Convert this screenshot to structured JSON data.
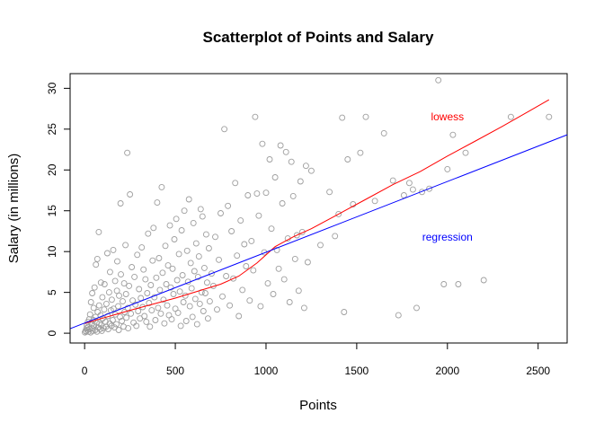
{
  "chart_data": {
    "type": "scatter",
    "title": "Scatterplot of Points and Salary",
    "xlabel": "Points",
    "ylabel": "Salary (in millions)",
    "xlim": [
      -80,
      2660
    ],
    "ylim": [
      -1.2,
      31.8
    ],
    "x_ticks": [
      0,
      500,
      1000,
      1500,
      2000,
      2500
    ],
    "y_ticks": [
      0,
      5,
      10,
      15,
      20,
      25,
      30
    ],
    "grid": false,
    "colors": {
      "points": "#9e9e9e",
      "lowess": "#ff0000",
      "regression": "#0000ff",
      "axis": "#000000"
    },
    "annotations": [
      {
        "text": "lowess",
        "x": 2000,
        "y": 26.5,
        "color": "#ff0000"
      },
      {
        "text": "regression",
        "x": 2000,
        "y": 11.8,
        "color": "#0000ff"
      }
    ],
    "regression": {
      "intercept": 1.25,
      "slope": 0.008667
    },
    "lowess": [
      [
        0,
        1.2
      ],
      [
        250,
        2.8
      ],
      [
        500,
        4.3
      ],
      [
        750,
        6.0
      ],
      [
        850,
        7.0
      ],
      [
        950,
        8.6
      ],
      [
        1050,
        10.6
      ],
      [
        1150,
        11.8
      ],
      [
        1250,
        12.8
      ],
      [
        1400,
        14.6
      ],
      [
        1550,
        16.4
      ],
      [
        1700,
        18.2
      ],
      [
        1850,
        19.8
      ],
      [
        2000,
        21.7
      ],
      [
        2150,
        23.5
      ],
      [
        2300,
        25.3
      ],
      [
        2450,
        27.2
      ],
      [
        2560,
        28.6
      ]
    ],
    "points": [
      [
        2,
        0.1
      ],
      [
        5,
        0.3
      ],
      [
        8,
        0.2
      ],
      [
        10,
        0.6
      ],
      [
        12,
        1.0
      ],
      [
        15,
        0.4
      ],
      [
        18,
        1.4
      ],
      [
        20,
        0.8
      ],
      [
        22,
        0.2
      ],
      [
        25,
        1.7
      ],
      [
        28,
        0.5
      ],
      [
        30,
        2.3
      ],
      [
        33,
        0.1
      ],
      [
        35,
        3.8
      ],
      [
        38,
        1.1
      ],
      [
        40,
        0.6
      ],
      [
        42,
        4.9
      ],
      [
        45,
        0.3
      ],
      [
        48,
        1.6
      ],
      [
        50,
        3.1
      ],
      [
        52,
        0.9
      ],
      [
        55,
        5.6
      ],
      [
        58,
        0.4
      ],
      [
        60,
        2.0
      ],
      [
        62,
        8.4
      ],
      [
        65,
        1.3
      ],
      [
        68,
        0.2
      ],
      [
        70,
        9.1
      ],
      [
        72,
        2.6
      ],
      [
        75,
        0.7
      ],
      [
        78,
        12.4
      ],
      [
        80,
        3.4
      ],
      [
        82,
        1.2
      ],
      [
        85,
        0.5
      ],
      [
        88,
        2.2
      ],
      [
        90,
        6.2
      ],
      [
        92,
        1.0
      ],
      [
        95,
        0.3
      ],
      [
        98,
        4.4
      ],
      [
        100,
        1.8
      ],
      [
        105,
        0.6
      ],
      [
        108,
        2.9
      ],
      [
        110,
        6.0
      ],
      [
        115,
        1.4
      ],
      [
        118,
        0.8
      ],
      [
        120,
        3.6
      ],
      [
        125,
        9.8
      ],
      [
        128,
        2.1
      ],
      [
        130,
        0.5
      ],
      [
        135,
        5.0
      ],
      [
        138,
        1.2
      ],
      [
        140,
        7.5
      ],
      [
        145,
        2.8
      ],
      [
        148,
        0.9
      ],
      [
        150,
        4.1
      ],
      [
        155,
        1.6
      ],
      [
        158,
        10.2
      ],
      [
        160,
        3.0
      ],
      [
        165,
        0.7
      ],
      [
        168,
        6.4
      ],
      [
        170,
        2.3
      ],
      [
        175,
        1.1
      ],
      [
        178,
        5.2
      ],
      [
        180,
        8.8
      ],
      [
        185,
        3.3
      ],
      [
        188,
        0.4
      ],
      [
        190,
        4.6
      ],
      [
        195,
        2.0
      ],
      [
        198,
        15.9
      ],
      [
        200,
        7.2
      ],
      [
        205,
        1.5
      ],
      [
        210,
        3.9
      ],
      [
        215,
        0.8
      ],
      [
        218,
        6.1
      ],
      [
        220,
        2.6
      ],
      [
        225,
        10.8
      ],
      [
        228,
        4.8
      ],
      [
        230,
        1.9
      ],
      [
        235,
        22.1
      ],
      [
        238,
        3.1
      ],
      [
        240,
        0.6
      ],
      [
        245,
        5.8
      ],
      [
        250,
        17.0
      ],
      [
        255,
        2.4
      ],
      [
        260,
        8.1
      ],
      [
        265,
        4.0
      ],
      [
        270,
        1.3
      ],
      [
        275,
        6.9
      ],
      [
        280,
        3.5
      ],
      [
        285,
        0.9
      ],
      [
        290,
        9.6
      ],
      [
        295,
        2.7
      ],
      [
        300,
        5.4
      ],
      [
        305,
        1.8
      ],
      [
        310,
        4.3
      ],
      [
        315,
        10.5
      ],
      [
        320,
        3.2
      ],
      [
        325,
        7.8
      ],
      [
        330,
        2.1
      ],
      [
        335,
        6.6
      ],
      [
        340,
        1.4
      ],
      [
        345,
        4.9
      ],
      [
        350,
        12.2
      ],
      [
        355,
        3.7
      ],
      [
        360,
        0.8
      ],
      [
        365,
        5.9
      ],
      [
        370,
        2.8
      ],
      [
        375,
        8.9
      ],
      [
        380,
        12.9
      ],
      [
        385,
        4.4
      ],
      [
        390,
        1.6
      ],
      [
        395,
        6.8
      ],
      [
        400,
        16.0
      ],
      [
        405,
        3.1
      ],
      [
        410,
        9.2
      ],
      [
        415,
        5.3
      ],
      [
        420,
        2.4
      ],
      [
        425,
        17.9
      ],
      [
        430,
        7.4
      ],
      [
        435,
        4.1
      ],
      [
        440,
        1.2
      ],
      [
        445,
        10.7
      ],
      [
        450,
        6.0
      ],
      [
        455,
        3.4
      ],
      [
        460,
        8.3
      ],
      [
        465,
        2.2
      ],
      [
        470,
        13.2
      ],
      [
        475,
        5.6
      ],
      [
        480,
        1.7
      ],
      [
        485,
        7.9
      ],
      [
        490,
        4.8
      ],
      [
        495,
        11.5
      ],
      [
        500,
        3.0
      ],
      [
        505,
        14.0
      ],
      [
        510,
        6.5
      ],
      [
        515,
        2.5
      ],
      [
        520,
        9.7
      ],
      [
        525,
        5.1
      ],
      [
        530,
        0.9
      ],
      [
        535,
        12.6
      ],
      [
        540,
        7.1
      ],
      [
        545,
        3.8
      ],
      [
        550,
        15.0
      ],
      [
        555,
        4.6
      ],
      [
        560,
        1.5
      ],
      [
        565,
        10.1
      ],
      [
        570,
        6.3
      ],
      [
        575,
        16.4
      ],
      [
        580,
        3.3
      ],
      [
        585,
        8.6
      ],
      [
        590,
        5.5
      ],
      [
        595,
        2.0
      ],
      [
        600,
        13.5
      ],
      [
        605,
        7.6
      ],
      [
        610,
        4.2
      ],
      [
        615,
        11.0
      ],
      [
        620,
        1.1
      ],
      [
        625,
        6.9
      ],
      [
        630,
        9.4
      ],
      [
        635,
        3.6
      ],
      [
        640,
        15.2
      ],
      [
        645,
        5.0
      ],
      [
        650,
        14.3
      ],
      [
        655,
        2.7
      ],
      [
        660,
        8.0
      ],
      [
        665,
        4.9
      ],
      [
        670,
        12.1
      ],
      [
        675,
        6.2
      ],
      [
        680,
        1.8
      ],
      [
        685,
        10.4
      ],
      [
        690,
        3.9
      ],
      [
        700,
        7.3
      ],
      [
        710,
        5.8
      ],
      [
        720,
        11.8
      ],
      [
        730,
        2.9
      ],
      [
        740,
        9.0
      ],
      [
        750,
        14.7
      ],
      [
        760,
        4.5
      ],
      [
        770,
        25.0
      ],
      [
        780,
        7.0
      ],
      [
        790,
        15.6
      ],
      [
        800,
        3.4
      ],
      [
        810,
        12.5
      ],
      [
        820,
        6.7
      ],
      [
        830,
        18.4
      ],
      [
        840,
        9.5
      ],
      [
        850,
        2.1
      ],
      [
        860,
        13.8
      ],
      [
        870,
        5.3
      ],
      [
        880,
        10.9
      ],
      [
        890,
        8.2
      ],
      [
        900,
        16.9
      ],
      [
        910,
        4.0
      ],
      [
        920,
        11.3
      ],
      [
        930,
        7.7
      ],
      [
        940,
        26.5
      ],
      [
        950,
        17.1
      ],
      [
        960,
        14.4
      ],
      [
        970,
        3.3
      ],
      [
        980,
        23.2
      ],
      [
        990,
        9.9
      ],
      [
        1000,
        17.2
      ],
      [
        1010,
        6.1
      ],
      [
        1020,
        21.3
      ],
      [
        1030,
        12.8
      ],
      [
        1040,
        4.8
      ],
      [
        1050,
        19.1
      ],
      [
        1060,
        10.2
      ],
      [
        1070,
        7.9
      ],
      [
        1080,
        23.0
      ],
      [
        1090,
        15.9
      ],
      [
        1100,
        6.6
      ],
      [
        1110,
        22.2
      ],
      [
        1120,
        11.6
      ],
      [
        1130,
        3.8
      ],
      [
        1140,
        21.0
      ],
      [
        1150,
        16.8
      ],
      [
        1160,
        9.1
      ],
      [
        1170,
        12.0
      ],
      [
        1180,
        5.2
      ],
      [
        1190,
        18.6
      ],
      [
        1200,
        12.4
      ],
      [
        1210,
        3.1
      ],
      [
        1220,
        20.5
      ],
      [
        1230,
        8.7
      ],
      [
        1250,
        19.9
      ],
      [
        1300,
        10.8
      ],
      [
        1350,
        17.3
      ],
      [
        1380,
        11.9
      ],
      [
        1400,
        14.6
      ],
      [
        1420,
        26.4
      ],
      [
        1430,
        2.6
      ],
      [
        1450,
        21.3
      ],
      [
        1480,
        15.8
      ],
      [
        1520,
        22.1
      ],
      [
        1550,
        26.5
      ],
      [
        1600,
        16.2
      ],
      [
        1650,
        24.5
      ],
      [
        1700,
        18.7
      ],
      [
        1730,
        2.2
      ],
      [
        1760,
        16.9
      ],
      [
        1790,
        18.4
      ],
      [
        1810,
        17.6
      ],
      [
        1830,
        3.1
      ],
      [
        1860,
        17.3
      ],
      [
        1900,
        17.7
      ],
      [
        1950,
        31.0
      ],
      [
        1980,
        6.0
      ],
      [
        2000,
        20.1
      ],
      [
        2030,
        24.3
      ],
      [
        2060,
        6.0
      ],
      [
        2100,
        22.1
      ],
      [
        2200,
        6.5
      ],
      [
        2350,
        26.5
      ],
      [
        2560,
        26.5
      ]
    ]
  }
}
